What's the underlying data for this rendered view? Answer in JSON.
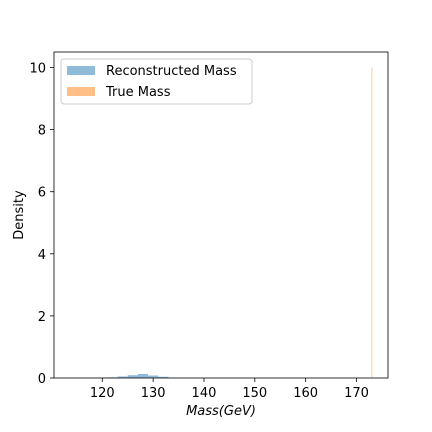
{
  "chart_data": {
    "type": "histogram",
    "title": "",
    "xlabel": "Mass(GeV)",
    "ylabel": "Density",
    "xlim": [
      110.5,
      176.2
    ],
    "ylim": [
      0,
      10.5
    ],
    "xticks": [
      120,
      130,
      140,
      150,
      160,
      170
    ],
    "yticks": [
      0,
      2,
      4,
      6,
      8,
      10
    ],
    "grid": false,
    "legend_position": "top-left",
    "series": [
      {
        "name": "Reconstructed Mass",
        "color": "#1f77b4",
        "alpha": 0.5,
        "bins": [
          {
            "x0": 119.0,
            "x1": 121.0,
            "density": 0.01
          },
          {
            "x0": 121.0,
            "x1": 123.0,
            "density": 0.02
          },
          {
            "x0": 123.0,
            "x1": 125.0,
            "density": 0.05
          },
          {
            "x0": 125.0,
            "x1": 127.0,
            "density": 0.09
          },
          {
            "x0": 127.0,
            "x1": 129.0,
            "density": 0.13
          },
          {
            "x0": 129.0,
            "x1": 131.0,
            "density": 0.08
          },
          {
            "x0": 131.0,
            "x1": 133.0,
            "density": 0.04
          },
          {
            "x0": 133.0,
            "x1": 135.0,
            "density": 0.01
          }
        ]
      },
      {
        "name": "True Mass",
        "color": "#ff7f0e",
        "alpha": 0.5,
        "bins": [
          {
            "x0": 172.95,
            "x1": 173.05,
            "density": 10.0
          }
        ]
      }
    ]
  }
}
